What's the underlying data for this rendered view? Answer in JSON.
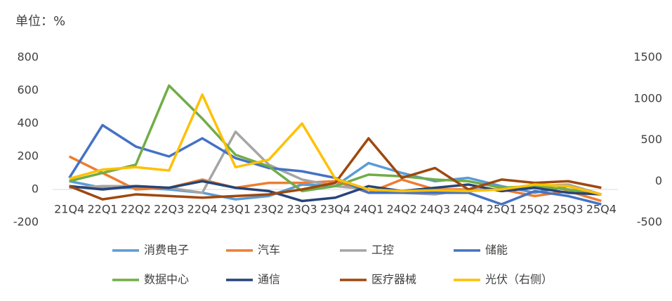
{
  "chart_data": {
    "type": "line",
    "title": "单位：%",
    "categories": [
      "21Q4",
      "22Q1",
      "22Q2",
      "22Q3",
      "22Q4",
      "23Q1",
      "23Q2",
      "23Q3",
      "23Q4",
      "24Q1",
      "24Q2",
      "24Q3",
      "24Q4",
      "25Q1",
      "25Q2",
      "25Q3",
      "25Q4"
    ],
    "ylim": [
      -200,
      800
    ],
    "yticks": [
      -200,
      0,
      200,
      400,
      600,
      800
    ],
    "y2lim": [
      -500,
      1500
    ],
    "y2ticks": [
      -500,
      0,
      500,
      1000,
      1500
    ],
    "grid": false,
    "series": [
      {
        "name": "消费电子",
        "color": "#5b9bd5",
        "values": [
          50,
          10,
          10,
          0,
          -20,
          -60,
          -40,
          30,
          20,
          160,
          100,
          50,
          70,
          20,
          -20,
          20,
          -30
        ]
      },
      {
        "name": "汽车",
        "color": "#ed7d31",
        "values": [
          200,
          100,
          0,
          10,
          60,
          10,
          40,
          40,
          50,
          -20,
          60,
          0,
          0,
          0,
          -40,
          -10,
          -70
        ]
      },
      {
        "name": "工控",
        "color": "#a5a5a5",
        "values": [
          10,
          20,
          20,
          10,
          -20,
          350,
          150,
          60,
          20,
          0,
          -20,
          -30,
          0,
          0,
          20,
          30,
          -30
        ]
      },
      {
        "name": "储能",
        "color": "#4472c4",
        "values": [
          70,
          390,
          260,
          200,
          310,
          190,
          130,
          110,
          70,
          -20,
          -20,
          -20,
          -20,
          -90,
          -10,
          -40,
          -90
        ]
      },
      {
        "name": "数据中心",
        "color": "#70ad47",
        "values": [
          50,
          100,
          150,
          630,
          430,
          210,
          140,
          -10,
          20,
          90,
          80,
          60,
          50,
          10,
          20,
          0,
          -30
        ]
      },
      {
        "name": "通信",
        "color": "#264478",
        "values": [
          20,
          0,
          20,
          10,
          50,
          10,
          -10,
          -70,
          -50,
          20,
          -10,
          10,
          30,
          -10,
          10,
          -20,
          -30
        ]
      },
      {
        "name": "医疗器械",
        "color": "#9e480e",
        "values": [
          20,
          -60,
          -30,
          -40,
          -50,
          -40,
          -30,
          0,
          40,
          310,
          70,
          130,
          0,
          60,
          40,
          50,
          10
        ]
      },
      {
        "name": "光伏（右侧）",
        "color": "#ffc000",
        "axis": "y2",
        "values": [
          30,
          140,
          170,
          130,
          1050,
          170,
          260,
          700,
          30,
          -100,
          -120,
          -110,
          -120,
          -100,
          -40,
          -60,
          -160
        ]
      }
    ]
  }
}
